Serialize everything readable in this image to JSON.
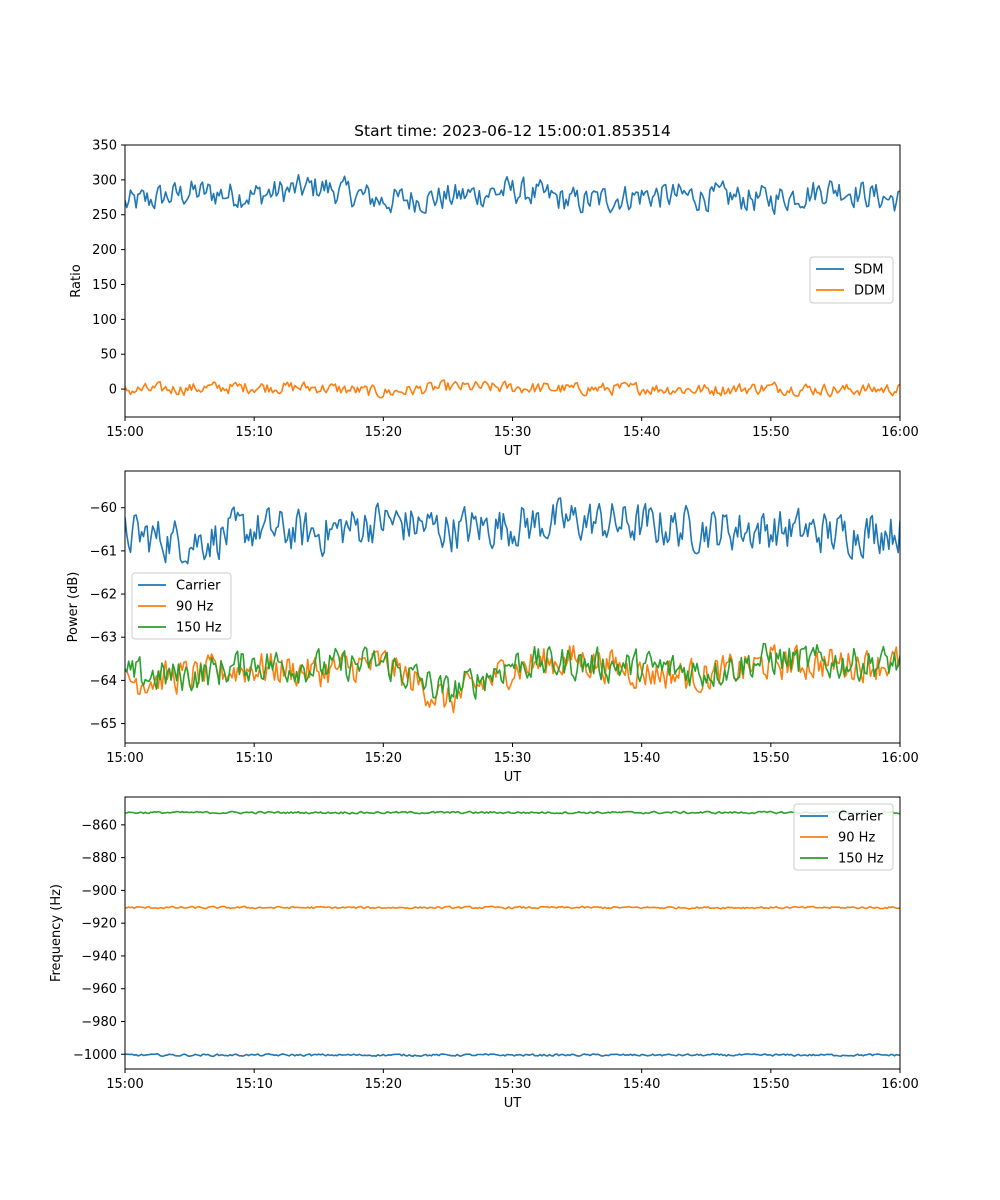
{
  "colors": {
    "c1": "#1f77b4",
    "c2": "#ff7f0e",
    "c3": "#2ca02c"
  },
  "chart_data": [
    {
      "type": "line",
      "title": "Start time: 2023-06-12 15:00:01.853514",
      "xlabel": "UT",
      "ylabel": "Ratio",
      "x_ticks": [
        "15:00",
        "15:10",
        "15:20",
        "15:30",
        "15:40",
        "15:50",
        "16:00"
      ],
      "xlim": [
        "15:00",
        "16:00"
      ],
      "ylim": [
        -40,
        350
      ],
      "y_ticks": [
        0,
        50,
        100,
        150,
        200,
        250,
        300,
        350
      ],
      "legend_position": "center-right",
      "grid": false,
      "series": [
        {
          "name": "SDM",
          "color": "#1f77b4",
          "x": [
            "15:00",
            "15:05",
            "15:10",
            "15:15",
            "15:20",
            "15:25",
            "15:30",
            "15:35",
            "15:40",
            "15:45",
            "15:50",
            "15:55",
            "16:00"
          ],
          "values": [
            265,
            282,
            278,
            290,
            270,
            275,
            285,
            268,
            278,
            276,
            272,
            288,
            270
          ],
          "noise": 18
        },
        {
          "name": "DDM",
          "color": "#ff7f0e",
          "x": [
            "15:00",
            "15:05",
            "15:10",
            "15:15",
            "15:20",
            "15:25",
            "15:30",
            "15:35",
            "15:40",
            "15:45",
            "15:50",
            "15:55",
            "16:00"
          ],
          "values": [
            -2,
            1,
            3,
            2,
            -5,
            3,
            2,
            0,
            1,
            -1,
            2,
            -1,
            0
          ],
          "noise": 8
        }
      ]
    },
    {
      "type": "line",
      "xlabel": "UT",
      "ylabel": "Power (dB)",
      "x_ticks": [
        "15:00",
        "15:10",
        "15:20",
        "15:30",
        "15:40",
        "15:50",
        "16:00"
      ],
      "xlim": [
        "15:00",
        "16:00"
      ],
      "ylim": [
        -65.45,
        -59.15
      ],
      "y_ticks": [
        -65,
        -64,
        -63,
        -62,
        -61,
        -60
      ],
      "legend_position": "center-left",
      "grid": false,
      "series": [
        {
          "name": "Carrier",
          "color": "#1f77b4",
          "x": [
            "15:00",
            "15:05",
            "15:10",
            "15:15",
            "15:20",
            "15:25",
            "15:30",
            "15:35",
            "15:40",
            "15:45",
            "15:50",
            "15:55",
            "16:00"
          ],
          "values": [
            -60.6,
            -60.8,
            -60.5,
            -60.6,
            -60.3,
            -60.5,
            -60.4,
            -60.3,
            -60.4,
            -60.5,
            -60.5,
            -60.6,
            -60.5
          ],
          "noise": 0.45
        },
        {
          "name": "90 Hz",
          "color": "#ff7f0e",
          "x": [
            "15:00",
            "15:05",
            "15:10",
            "15:15",
            "15:20",
            "15:25",
            "15:30",
            "15:35",
            "15:40",
            "15:45",
            "15:50",
            "15:55",
            "16:00"
          ],
          "values": [
            -64.0,
            -63.9,
            -63.7,
            -63.8,
            -63.6,
            -64.5,
            -63.7,
            -63.5,
            -63.8,
            -63.9,
            -63.6,
            -63.6,
            -63.6
          ],
          "noise": 0.35
        },
        {
          "name": "150 Hz",
          "color": "#2ca02c",
          "x": [
            "15:00",
            "15:05",
            "15:10",
            "15:15",
            "15:20",
            "15:25",
            "15:30",
            "15:35",
            "15:40",
            "15:45",
            "15:50",
            "15:55",
            "16:00"
          ],
          "values": [
            -63.9,
            -63.9,
            -63.6,
            -63.7,
            -63.6,
            -64.3,
            -63.6,
            -63.6,
            -63.7,
            -63.8,
            -63.5,
            -63.6,
            -63.6
          ],
          "noise": 0.35
        }
      ]
    },
    {
      "type": "line",
      "xlabel": "UT",
      "ylabel": "Frequency (Hz)",
      "x_ticks": [
        "15:00",
        "15:10",
        "15:20",
        "15:30",
        "15:40",
        "15:50",
        "16:00"
      ],
      "xlim": [
        "15:00",
        "16:00"
      ],
      "ylim": [
        -1009,
        -843
      ],
      "y_ticks": [
        -1000,
        -980,
        -960,
        -940,
        -920,
        -900,
        -880,
        -860
      ],
      "legend_position": "top-right",
      "grid": false,
      "series": [
        {
          "name": "Carrier",
          "color": "#1f77b4",
          "x": [
            "15:00",
            "15:30",
            "16:00"
          ],
          "values": [
            -1000.5,
            -1000.5,
            -1000.5
          ],
          "noise": 0.6
        },
        {
          "name": "90 Hz",
          "color": "#ff7f0e",
          "x": [
            "15:00",
            "15:30",
            "16:00"
          ],
          "values": [
            -910.5,
            -910.5,
            -910.5
          ],
          "noise": 0.6
        },
        {
          "name": "150 Hz",
          "color": "#2ca02c",
          "x": [
            "15:00",
            "15:30",
            "16:00"
          ],
          "values": [
            -852.5,
            -852.5,
            -852.5
          ],
          "noise": 0.6
        }
      ]
    }
  ]
}
